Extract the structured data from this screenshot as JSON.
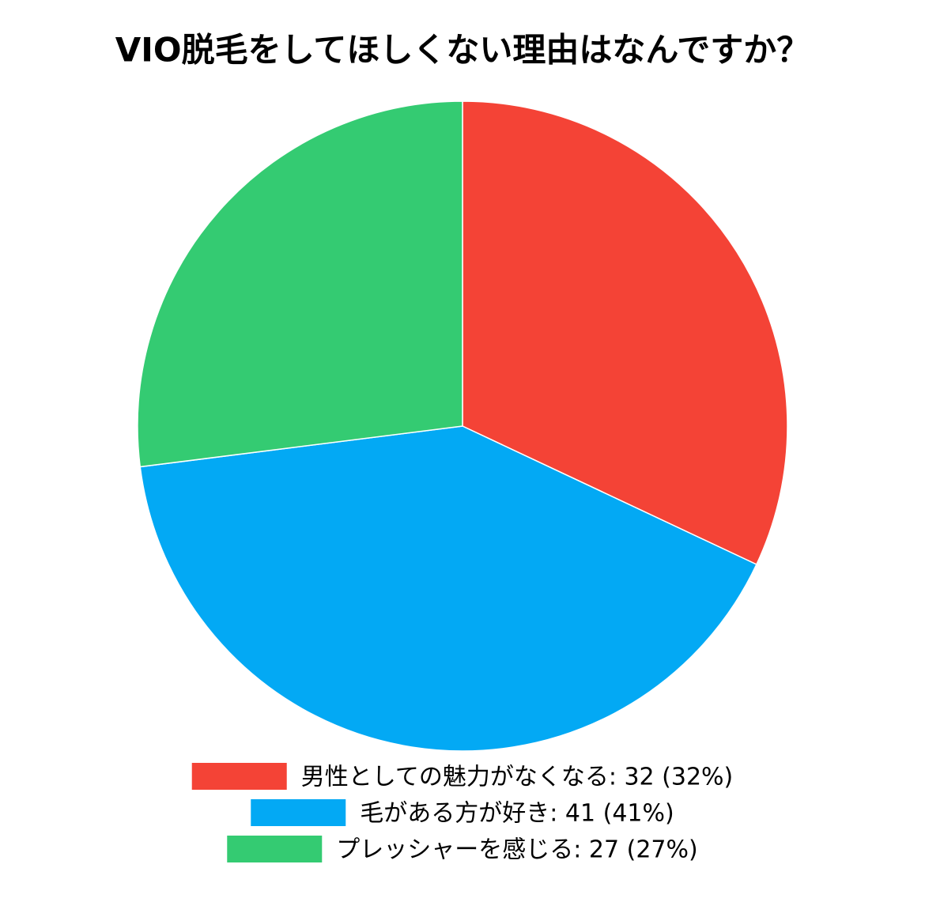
{
  "chart_data": {
    "type": "pie",
    "title": "VIO脱毛をしてほしくない理由はなんですか？",
    "categories": [
      "男性としての魅力がなくなる: 32 (32%)",
      "毛がある方が好き: 41 (41%)",
      "プレッシャーを感じる: 27 (27%)"
    ],
    "values": [
      32,
      41,
      27
    ],
    "colors": [
      "#f44336",
      "#03a9f4",
      "#34cb72"
    ]
  }
}
